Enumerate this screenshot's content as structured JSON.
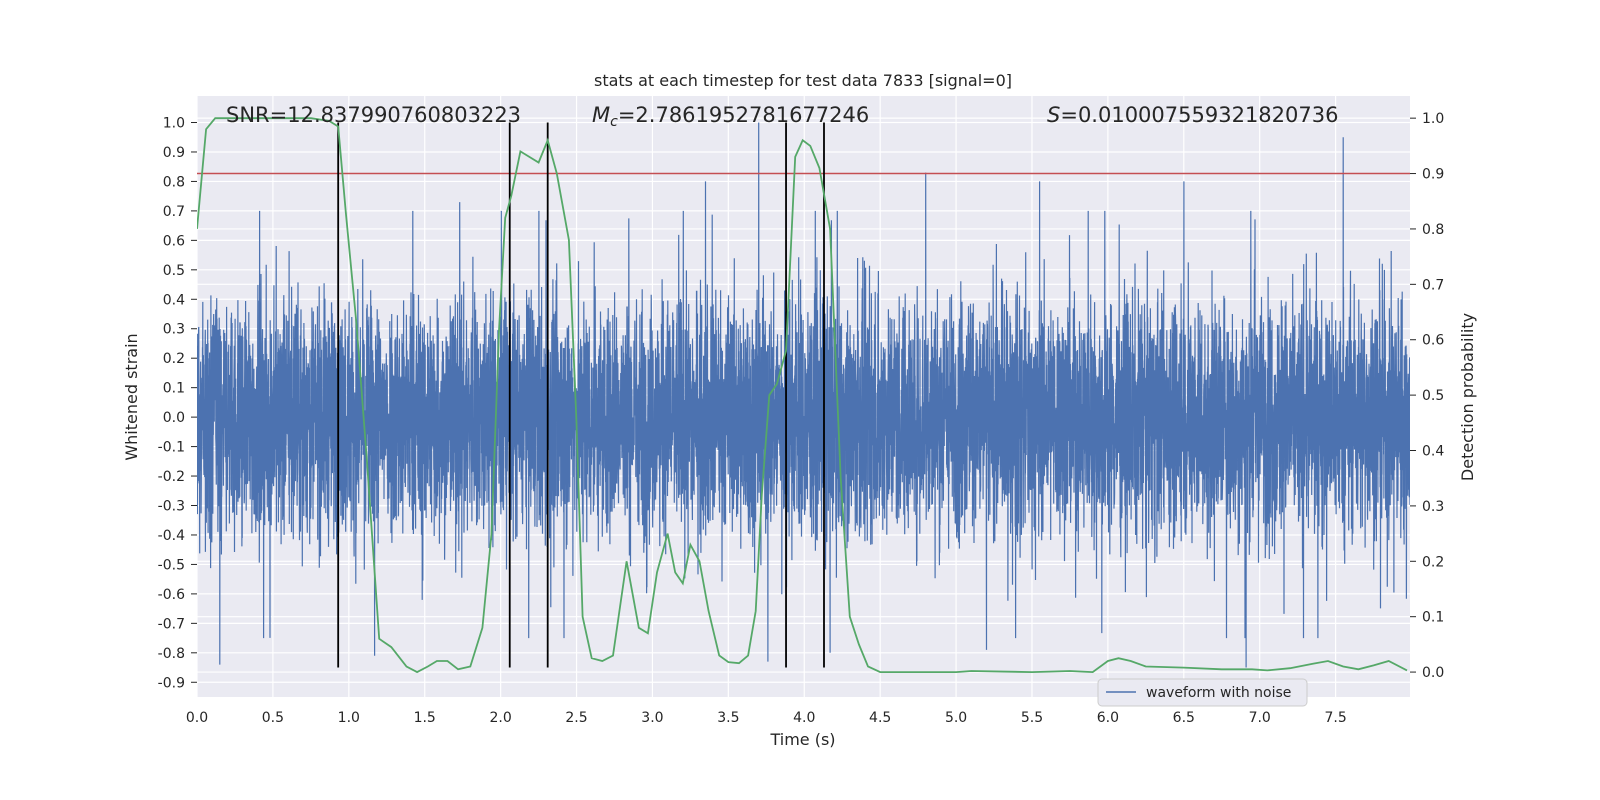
{
  "chart_data": {
    "type": "line",
    "title": "stats at each timestep for test data 7833 [signal=0]",
    "xlabel": "Time (s)",
    "ylabel": "Whitened strain",
    "y2label": "Detection probability",
    "xlim": [
      0.0,
      7.99
    ],
    "ylim": [
      -0.95,
      1.09
    ],
    "y2lim": [
      -0.045,
      1.04
    ],
    "x_ticks": [
      "0.0",
      "0.5",
      "1.0",
      "1.5",
      "2.0",
      "2.5",
      "3.0",
      "3.5",
      "4.0",
      "4.5",
      "5.0",
      "5.5",
      "6.0",
      "6.5",
      "7.0",
      "7.5"
    ],
    "x_tick_values": [
      0.0,
      0.5,
      1.0,
      1.5,
      2.0,
      2.5,
      3.0,
      3.5,
      4.0,
      4.5,
      5.0,
      5.5,
      6.0,
      6.5,
      7.0,
      7.5
    ],
    "y_ticks": [
      "-0.9",
      "-0.8",
      "-0.7",
      "-0.6",
      "-0.5",
      "-0.4",
      "-0.3",
      "-0.2",
      "-0.1",
      "0.0",
      "0.1",
      "0.2",
      "0.3",
      "0.4",
      "0.5",
      "0.6",
      "0.7",
      "0.8",
      "0.9",
      "1.0"
    ],
    "y_tick_values": [
      -0.9,
      -0.8,
      -0.7,
      -0.6,
      -0.5,
      -0.4,
      -0.3,
      -0.2,
      -0.1,
      0.0,
      0.1,
      0.2,
      0.3,
      0.4,
      0.5,
      0.6,
      0.7,
      0.8,
      0.9,
      1.0
    ],
    "y2_ticks": [
      "0.0",
      "0.1",
      "0.2",
      "0.3",
      "0.4",
      "0.5",
      "0.6",
      "0.7",
      "0.8",
      "0.9",
      "1.0"
    ],
    "y2_tick_values": [
      0.0,
      0.1,
      0.2,
      0.3,
      0.4,
      0.5,
      0.6,
      0.7,
      0.8,
      0.9,
      1.0
    ],
    "grid": true,
    "legend": {
      "position": "lower-right",
      "entries": [
        "waveform with noise"
      ]
    },
    "annotations": {
      "snr": "SNR=12.837990760803223",
      "mc_symbol": "M",
      "mc_sub": "c",
      "mc_value": "=2.7861952781677246",
      "s_symbol": "S",
      "s_value": "=0.010007559321820736"
    },
    "threshold": {
      "axis": "y2",
      "value": 0.9,
      "color": "#c44e52"
    },
    "vertical_lines": [
      0.93,
      2.06,
      2.31,
      3.88,
      4.13
    ],
    "colors": {
      "waveform": "#4c72b0",
      "probability": "#55a868",
      "vlines": "#000000",
      "plot_bg": "#eaeaf2",
      "grid": "#ffffff"
    },
    "series": [
      {
        "name": "waveform with noise",
        "axis": "y",
        "kind": "noise",
        "samples": 8192,
        "envelope": {
          "core_sigma": 0.2,
          "typical_min": -0.5,
          "typical_max": 0.6
        },
        "spikes": [
          {
            "x": 0.15,
            "y": -0.84
          },
          {
            "x": 1.17,
            "y": -0.81
          },
          {
            "x": 3.7,
            "y": 1.0
          },
          {
            "x": 3.76,
            "y": -0.83
          },
          {
            "x": 4.17,
            "y": -0.8
          },
          {
            "x": 5.2,
            "y": -0.79
          },
          {
            "x": 6.91,
            "y": -0.85
          },
          {
            "x": 7.55,
            "y": 0.95
          },
          {
            "x": 1.73,
            "y": 0.73
          },
          {
            "x": 3.35,
            "y": 0.8
          },
          {
            "x": 4.8,
            "y": 0.83
          },
          {
            "x": 5.55,
            "y": 0.8
          },
          {
            "x": 6.5,
            "y": 0.8
          }
        ]
      },
      {
        "name": "detection probability",
        "axis": "y2",
        "x": [
          0.0,
          0.06,
          0.12,
          0.25,
          0.5,
          0.75,
          0.87,
          0.93,
          0.98,
          1.05,
          1.12,
          1.2,
          1.28,
          1.38,
          1.45,
          1.52,
          1.58,
          1.65,
          1.72,
          1.8,
          1.88,
          1.94,
          1.99,
          2.03,
          2.07,
          2.13,
          2.25,
          2.31,
          2.37,
          2.45,
          2.5,
          2.54,
          2.6,
          2.67,
          2.74,
          2.83,
          2.91,
          2.97,
          3.03,
          3.1,
          3.15,
          3.2,
          3.25,
          3.31,
          3.37,
          3.44,
          3.5,
          3.57,
          3.63,
          3.68,
          3.72,
          3.77,
          3.82,
          3.88,
          3.94,
          3.99,
          4.04,
          4.1,
          4.17,
          4.24,
          4.3,
          4.36,
          4.42,
          4.5,
          4.75,
          5.0,
          5.1,
          5.5,
          5.75,
          5.9,
          6.0,
          6.07,
          6.15,
          6.25,
          6.5,
          6.75,
          6.85,
          6.91,
          6.95,
          7.05,
          7.2,
          7.35,
          7.45,
          7.55,
          7.65,
          7.75,
          7.85,
          7.97
        ],
        "y": [
          0.8,
          0.98,
          1.0,
          1.0,
          1.0,
          1.0,
          0.995,
          0.985,
          0.83,
          0.63,
          0.38,
          0.06,
          0.045,
          0.01,
          0.0,
          0.01,
          0.02,
          0.02,
          0.005,
          0.01,
          0.08,
          0.25,
          0.62,
          0.82,
          0.86,
          0.94,
          0.92,
          0.96,
          0.9,
          0.78,
          0.45,
          0.1,
          0.025,
          0.02,
          0.03,
          0.2,
          0.08,
          0.07,
          0.18,
          0.25,
          0.18,
          0.16,
          0.23,
          0.2,
          0.11,
          0.03,
          0.018,
          0.016,
          0.03,
          0.11,
          0.32,
          0.5,
          0.52,
          0.58,
          0.93,
          0.96,
          0.95,
          0.91,
          0.8,
          0.35,
          0.1,
          0.05,
          0.01,
          0.0,
          0.0,
          0.0,
          0.002,
          0.0,
          0.002,
          0.0,
          0.02,
          0.025,
          0.02,
          0.01,
          0.008,
          0.005,
          0.005,
          0.005,
          0.005,
          0.003,
          0.007,
          0.015,
          0.02,
          0.01,
          0.005,
          0.012,
          0.02,
          0.003
        ]
      }
    ]
  }
}
